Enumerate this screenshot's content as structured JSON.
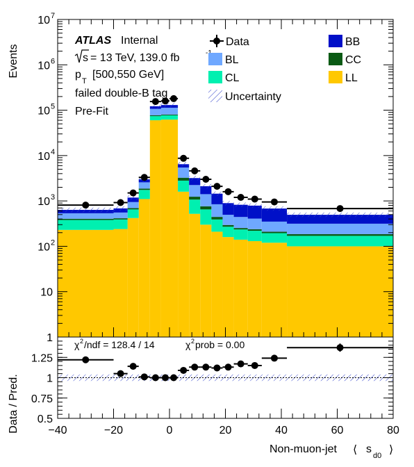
{
  "colors": {
    "BB": "#0010c8",
    "CC": "#0a5a14",
    "BL": "#6fa8ff",
    "CL": "#00f0b0",
    "LL": "#ffc800",
    "data": "#000000",
    "uncertainty": "#3344cc"
  },
  "text": {
    "atlas": "ATLAS",
    "internal": "Internal",
    "energy": "= 13 TeV, 139.0 fb",
    "energy_sup": "-1",
    "pt_p": "p",
    "pt_sub": "T",
    "pt_range": "[500,550 GeV]",
    "tag": "failed double-B tag",
    "prefit": "Pre-Fit",
    "chi2_ndf": "/ndf = 128.4 / 14",
    "chi2_prob": "prob = 0.00",
    "xlabel_main": "Non-muon-jet",
    "xlabel_s": "s",
    "xlabel_sub": "d0",
    "ylabel_top": "Events",
    "ylabel_bottom": "Data / Pred."
  },
  "chart_data": [
    {
      "type": "bar",
      "stacked": true,
      "log_y": true,
      "ylabel": "Events",
      "xlim": [
        -40,
        80
      ],
      "ylim": [
        1,
        10000000
      ],
      "y_tick_labels": [
        "1",
        "10",
        "10^2",
        "10^3",
        "10^4",
        "10^5",
        "10^6",
        "10^7"
      ],
      "bin_edges": [
        -40,
        -20,
        -15,
        -11,
        -7,
        -3,
        0,
        3,
        7,
        11,
        15,
        19,
        23,
        28,
        33,
        42,
        80
      ],
      "series": [
        {
          "name": "LL",
          "values": [
            230,
            240,
            420,
            1100,
            60000,
            62000,
            62000,
            1600,
            520,
            300,
            210,
            160,
            140,
            130,
            120,
            100
          ]
        },
        {
          "name": "CL",
          "values": [
            150,
            150,
            230,
            650,
            14000,
            15000,
            15000,
            1200,
            550,
            350,
            180,
            110,
            95,
            90,
            75,
            70
          ]
        },
        {
          "name": "CC",
          "values": [
            25,
            25,
            45,
            120,
            3000,
            3000,
            3000,
            450,
            170,
            110,
            55,
            25,
            18,
            18,
            15,
            15
          ]
        },
        {
          "name": "BL",
          "values": [
            130,
            140,
            250,
            700,
            30000,
            33000,
            33000,
            2200,
            1000,
            650,
            400,
            200,
            190,
            170,
            140,
            130
          ]
        },
        {
          "name": "BB",
          "values": [
            100,
            130,
            240,
            420,
            15000,
            17000,
            17000,
            1000,
            950,
            700,
            600,
            400,
            380,
            380,
            330,
            180
          ]
        }
      ],
      "data_points": {
        "name": "Data",
        "x": [
          -30,
          -17.5,
          -13,
          -9,
          -5,
          -1.5,
          1.5,
          5,
          9,
          13,
          17,
          21,
          25.5,
          30.5,
          37.5,
          61
        ],
        "y": [
          810,
          920,
          1500,
          3300,
          155000,
          160000,
          180000,
          8700,
          4600,
          3000,
          2100,
          1600,
          1200,
          1100,
          950,
          680
        ]
      },
      "legend": [
        "Data",
        "BB",
        "BL",
        "CC",
        "CL",
        "LL",
        "Uncertainty"
      ]
    },
    {
      "type": "scatter",
      "ylabel": "Data / Pred.",
      "xlabel": "Non-muon-jet  s_d0",
      "xlim": [
        -40,
        80
      ],
      "ylim": [
        0.5,
        1.5
      ],
      "x_ticks": [
        -40,
        -20,
        0,
        20,
        40,
        60,
        80
      ],
      "y_ticks": [
        0.5,
        0.75,
        1,
        1.25
      ],
      "x": [
        -30,
        -17.5,
        -13,
        -9,
        -5,
        -1.5,
        1.5,
        5,
        9,
        13,
        17,
        21,
        25.5,
        30.5,
        37.5,
        61
      ],
      "y": [
        1.22,
        1.05,
        1.14,
        1.01,
        1.0,
        1.0,
        1.0,
        1.09,
        1.13,
        1.13,
        1.12,
        1.13,
        1.17,
        1.15,
        1.24,
        1.37
      ],
      "uncertainty_band": [
        0.96,
        1.04
      ]
    }
  ]
}
